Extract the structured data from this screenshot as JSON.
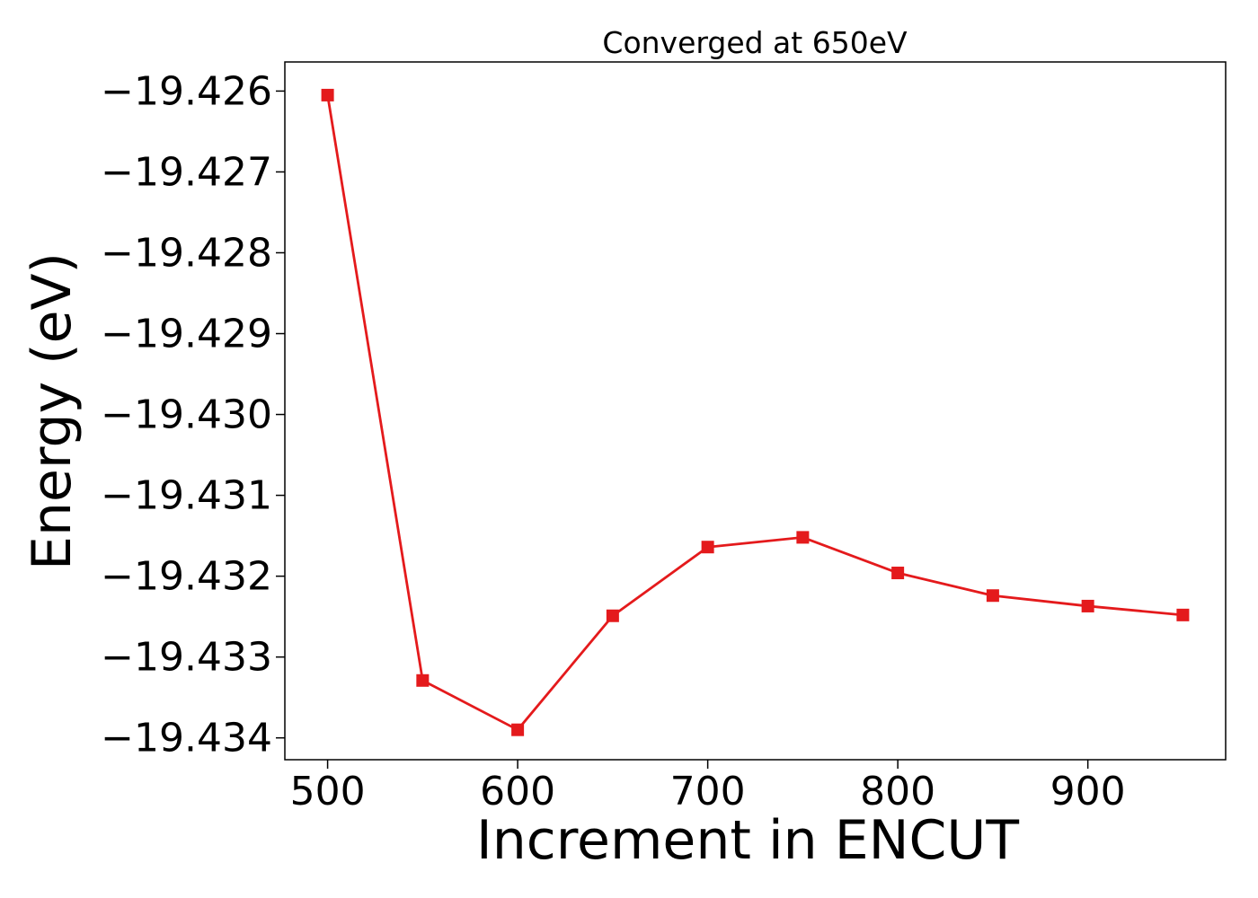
{
  "chart_data": {
    "type": "line",
    "title": "Converged at 650eV",
    "xlabel": "Increment in ENCUT",
    "ylabel": "Energy (eV)",
    "xlim": [
      477.5,
      972.5
    ],
    "ylim": [
      -19.43427,
      -19.42564
    ],
    "xticks": [
      500,
      600,
      700,
      800,
      900
    ],
    "yticks": [
      -19.426,
      -19.427,
      -19.428,
      -19.429,
      -19.43,
      -19.431,
      -19.432,
      -19.433,
      -19.434
    ],
    "ytick_labels": [
      "−19.426",
      "−19.427",
      "−19.428",
      "−19.429",
      "−19.430",
      "−19.431",
      "−19.432",
      "−19.433",
      "−19.434"
    ],
    "grid": false,
    "series": [
      {
        "color": "#e41a1c",
        "marker": "square",
        "x": [
          500,
          550,
          600,
          650,
          700,
          750,
          800,
          850,
          900,
          950
        ],
        "y": [
          -19.42605,
          -19.43329,
          -19.4339,
          -19.43249,
          -19.43164,
          -19.43152,
          -19.43196,
          -19.43224,
          -19.43237,
          -19.43248
        ]
      }
    ]
  }
}
